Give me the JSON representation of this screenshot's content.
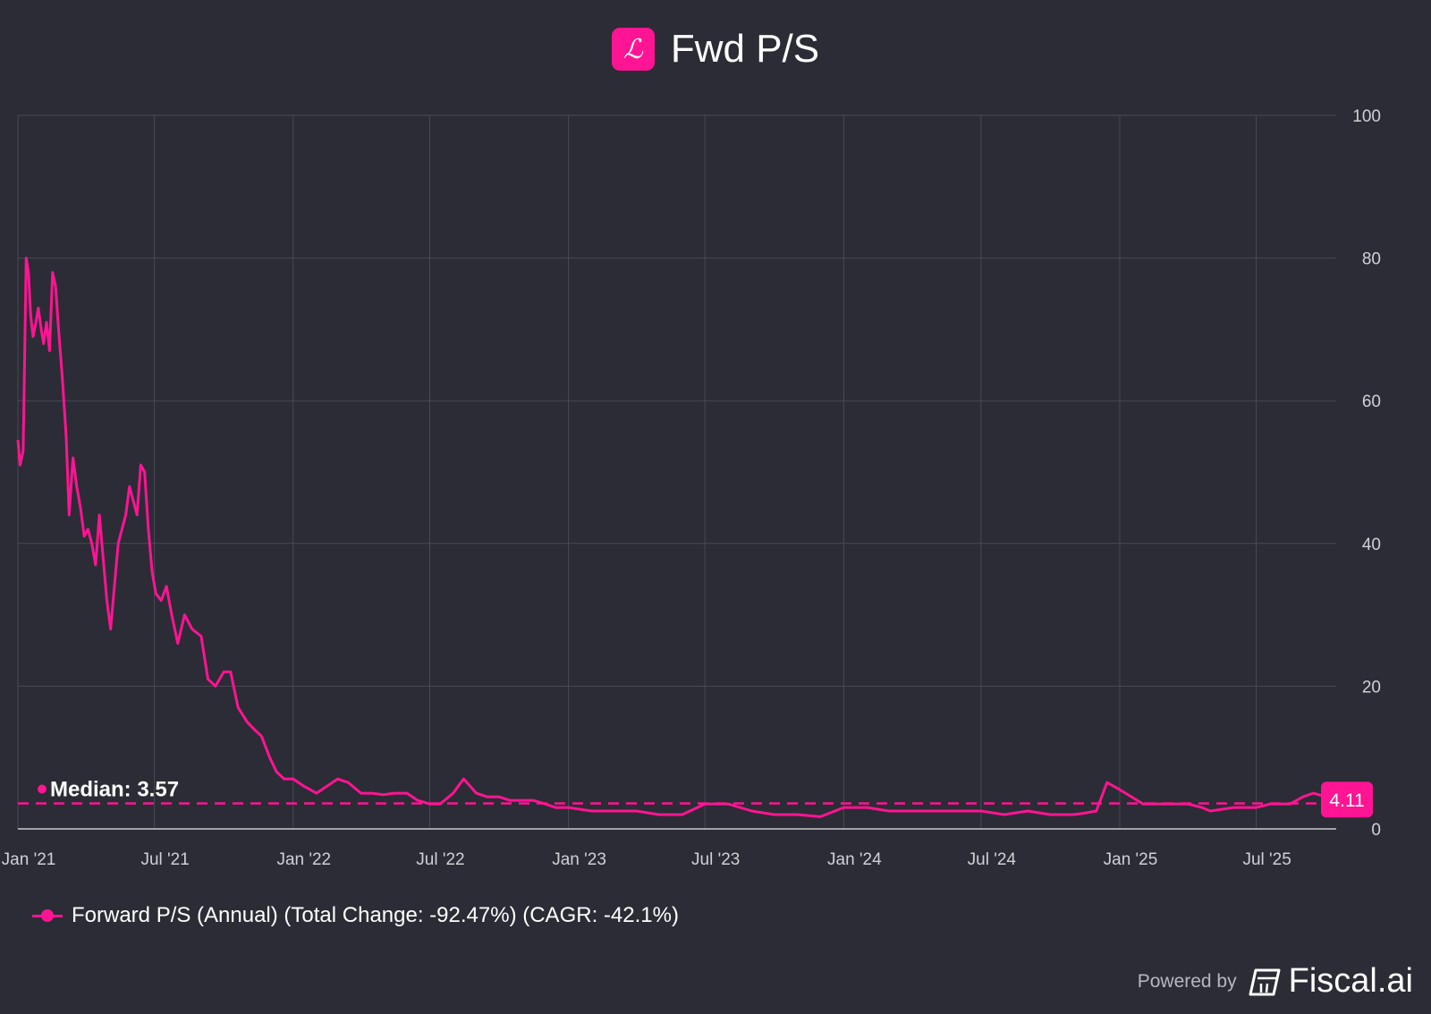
{
  "header": {
    "title": "Fwd P/S",
    "logo_glyph": "ℒ",
    "logo_icon": "script-l-icon",
    "accent_color": "#ff1493"
  },
  "chart_data": {
    "type": "line",
    "title": "Fwd P/S",
    "xlabel": "",
    "ylabel": "",
    "x_tick_labels": [
      "Jan '21",
      "Jul '21",
      "Jan '22",
      "Jul '22",
      "Jan '23",
      "Jul '23",
      "Jan '24",
      "Jul '24",
      "Jan '25",
      "Jul '25"
    ],
    "x_tick_dates": [
      "2021-01-01",
      "2021-07-01",
      "2022-01-01",
      "2022-07-01",
      "2023-01-01",
      "2023-07-01",
      "2024-01-01",
      "2024-07-01",
      "2025-01-01",
      "2025-07-01"
    ],
    "y_ticks": [
      0,
      20,
      40,
      60,
      80,
      100
    ],
    "ylim": [
      0,
      100
    ],
    "xlim": [
      "2021-01-01",
      "2025-10-15"
    ],
    "grid": true,
    "legend_position": "bottom-left",
    "median": {
      "label": "Median: 3.57",
      "value": 3.57
    },
    "last_value": {
      "label": "4.11",
      "value": 4.11
    },
    "series": [
      {
        "name": "Forward P/S (Annual) (Total Change: -92.47%) (CAGR: -42.1%)",
        "color": "#ff1493",
        "x": [
          "2021-01-01",
          "2021-01-04",
          "2021-01-08",
          "2021-01-12",
          "2021-01-15",
          "2021-01-18",
          "2021-01-21",
          "2021-01-25",
          "2021-01-28",
          "2021-02-01",
          "2021-02-04",
          "2021-02-08",
          "2021-02-12",
          "2021-02-16",
          "2021-02-20",
          "2021-02-24",
          "2021-03-01",
          "2021-03-06",
          "2021-03-10",
          "2021-03-15",
          "2021-03-20",
          "2021-03-25",
          "2021-03-30",
          "2021-04-04",
          "2021-04-09",
          "2021-04-14",
          "2021-04-19",
          "2021-04-24",
          "2021-04-29",
          "2021-05-04",
          "2021-05-09",
          "2021-05-14",
          "2021-05-19",
          "2021-05-24",
          "2021-05-29",
          "2021-06-03",
          "2021-06-08",
          "2021-06-13",
          "2021-06-18",
          "2021-06-23",
          "2021-06-28",
          "2021-07-03",
          "2021-07-10",
          "2021-07-17",
          "2021-07-24",
          "2021-08-01",
          "2021-08-10",
          "2021-08-20",
          "2021-09-01",
          "2021-09-10",
          "2021-09-20",
          "2021-10-01",
          "2021-10-10",
          "2021-10-20",
          "2021-11-01",
          "2021-11-10",
          "2021-11-20",
          "2021-12-01",
          "2021-12-10",
          "2021-12-20",
          "2022-01-01",
          "2022-01-15",
          "2022-02-01",
          "2022-02-15",
          "2022-03-01",
          "2022-03-15",
          "2022-04-01",
          "2022-04-15",
          "2022-05-01",
          "2022-05-15",
          "2022-06-01",
          "2022-06-15",
          "2022-07-01",
          "2022-07-15",
          "2022-08-01",
          "2022-08-15",
          "2022-09-01",
          "2022-09-15",
          "2022-10-01",
          "2022-10-15",
          "2022-11-01",
          "2022-11-15",
          "2022-12-01",
          "2022-12-15",
          "2023-01-01",
          "2023-02-01",
          "2023-03-01",
          "2023-04-01",
          "2023-05-01",
          "2023-06-01",
          "2023-07-01",
          "2023-08-01",
          "2023-09-01",
          "2023-10-01",
          "2023-11-01",
          "2023-12-01",
          "2024-01-01",
          "2024-02-01",
          "2024-03-01",
          "2024-04-01",
          "2024-05-01",
          "2024-06-01",
          "2024-07-01",
          "2024-08-01",
          "2024-09-01",
          "2024-10-01",
          "2024-11-01",
          "2024-11-15",
          "2024-12-01",
          "2024-12-15",
          "2025-01-01",
          "2025-02-01",
          "2025-03-01",
          "2025-04-01",
          "2025-04-20",
          "2025-05-01",
          "2025-06-01",
          "2025-07-01",
          "2025-07-20",
          "2025-08-01",
          "2025-08-15",
          "2025-09-01",
          "2025-09-15",
          "2025-10-01",
          "2025-10-10",
          "2025-10-15"
        ],
        "y": [
          54.5,
          51,
          53,
          80,
          78,
          72,
          69,
          71,
          73,
          70,
          68,
          71,
          67,
          78,
          76,
          70,
          63,
          55,
          44,
          52,
          48,
          45,
          41,
          42,
          40,
          37,
          44,
          38,
          32,
          28,
          34,
          40,
          42,
          44,
          48,
          46,
          44,
          51,
          50,
          42,
          36,
          33,
          32,
          34,
          30,
          26,
          30,
          28,
          27,
          21,
          20,
          22,
          22,
          17,
          15,
          14,
          13,
          10,
          8,
          7,
          7,
          6,
          5,
          6,
          7,
          6.5,
          5,
          5,
          4.8,
          5,
          5,
          4,
          3.5,
          3.5,
          5,
          7,
          5,
          4.5,
          4.5,
          4,
          4,
          4,
          3.5,
          3,
          3,
          2.5,
          2.5,
          2.5,
          2,
          2,
          3.5,
          3.5,
          2.5,
          2,
          2,
          1.7,
          3,
          3,
          2.5,
          2.5,
          2.5,
          2.5,
          2.5,
          2,
          2.5,
          2,
          2,
          2.2,
          2.5,
          6.5,
          5.5,
          3.5,
          3.5,
          3.5,
          3,
          2.5,
          3,
          3,
          3.5,
          3.5,
          3.5,
          4.5,
          5,
          4.5,
          5,
          4.11
        ]
      }
    ]
  },
  "legend": {
    "label": "Forward P/S (Annual) (Total Change: -92.47%) (CAGR: -42.1%)"
  },
  "footer": {
    "powered_by": "Powered by",
    "brand": "Fiscal.ai",
    "brand_icon": "fiscal-logo-icon"
  }
}
